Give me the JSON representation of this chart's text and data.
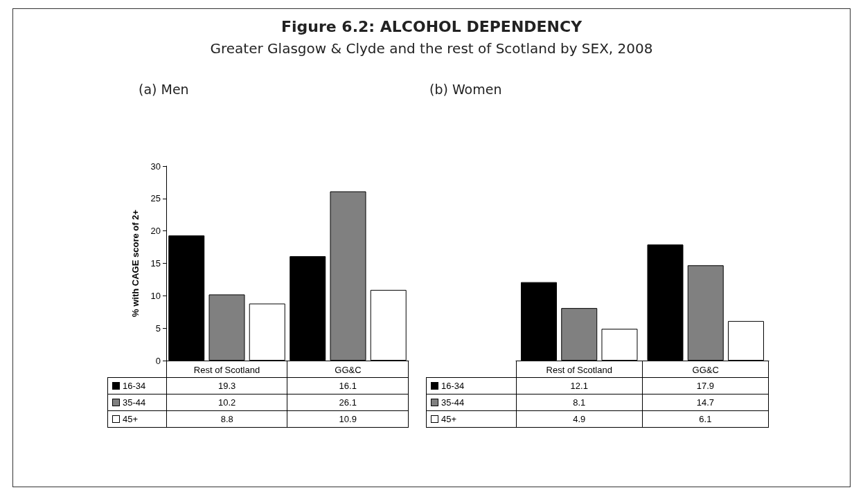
{
  "chart_data": [
    {
      "type": "bar",
      "title": "(a) Men",
      "annotations": [
        "Figure 6.2: ALCOHOL DEPENDENCY",
        "Greater Glasgow & Clyde and the rest of Scotland by SEX, 2008"
      ],
      "ylabel": "% with CAGE score of 2+",
      "categories": [
        "Rest of Scotland",
        "GG&C"
      ],
      "series": [
        {
          "name": "16-34",
          "color": "#000000",
          "values": [
            19.3,
            16.1
          ]
        },
        {
          "name": "35-44",
          "color": "#808080",
          "values": [
            10.2,
            26.1
          ]
        },
        {
          "name": "45+",
          "color": "#ffffff",
          "values": [
            8.8,
            10.9
          ]
        }
      ],
      "ylim": [
        0,
        30
      ],
      "yticks": [
        0,
        5,
        10,
        15,
        20,
        25,
        30
      ],
      "grid": false,
      "legend": "bottom",
      "data_labels": true
    },
    {
      "type": "bar",
      "title": "(b) Women",
      "categories": [
        "Rest of Scotland",
        "GG&C"
      ],
      "series": [
        {
          "name": "16-34",
          "color": "#000000",
          "values": [
            12.1,
            17.9
          ]
        },
        {
          "name": "35-44",
          "color": "#808080",
          "values": [
            8.1,
            14.7
          ]
        },
        {
          "name": "45+",
          "color": "#ffffff",
          "values": [
            4.9,
            6.1
          ]
        }
      ],
      "ylim": [
        0,
        30
      ],
      "yticks": [
        0,
        5,
        10,
        15,
        20,
        25,
        30
      ],
      "grid": false,
      "legend": "bottom",
      "data_labels": true,
      "tick_labels": "x"
    }
  ]
}
